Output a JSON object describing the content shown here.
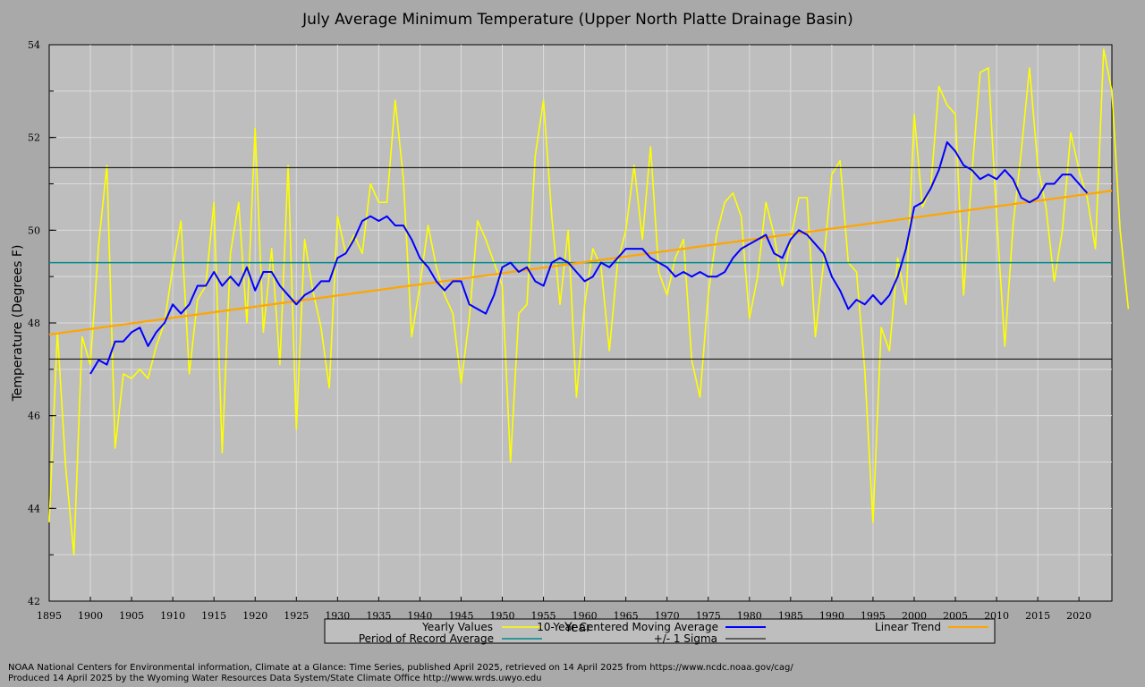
{
  "chart_data": {
    "type": "line",
    "title": "July Average Minimum Temperature (Upper North Platte Drainage Basin)",
    "xlabel": "Year",
    "ylabel": "Temperature (Degrees F)",
    "xlim": [
      1895,
      2024
    ],
    "ylim": [
      42,
      54
    ],
    "x_ticks": [
      1895,
      1900,
      1905,
      1910,
      1915,
      1920,
      1925,
      1930,
      1935,
      1940,
      1945,
      1950,
      1955,
      1960,
      1965,
      1970,
      1975,
      1980,
      1985,
      1990,
      1995,
      2000,
      2005,
      2010,
      2015,
      2020
    ],
    "y_ticks": [
      42,
      44,
      46,
      48,
      50,
      52,
      54
    ],
    "grid": true,
    "legend_placement": "bottom",
    "colors": {
      "plot_bg": "#bebebe",
      "page_bg": "#a9a9a9",
      "yearly": "#ffff00",
      "moving_avg": "#0000ff",
      "trend": "#ffa500",
      "por_avg": "#008b8b",
      "sigma": "#000000"
    },
    "legend": {
      "yearly": "Yearly Values",
      "moving_avg": "10-Year Centered Moving Average",
      "trend": "Linear Trend",
      "por_avg": "Period of Record Average",
      "sigma": "+/- 1 Sigma"
    },
    "years_start": 1895,
    "yearly_values": [
      43.7,
      47.8,
      44.9,
      43.0,
      47.7,
      47.1,
      49.7,
      51.4,
      45.3,
      46.9,
      46.8,
      47.0,
      46.8,
      47.5,
      48.0,
      49.2,
      50.2,
      46.9,
      48.5,
      48.8,
      50.6,
      45.2,
      49.5,
      50.6,
      48.0,
      52.2,
      47.8,
      49.6,
      47.1,
      51.4,
      45.7,
      49.8,
      48.7,
      47.9,
      46.6,
      50.3,
      49.5,
      49.9,
      49.5,
      51.0,
      50.6,
      50.6,
      52.8,
      51.1,
      47.7,
      48.8,
      50.1,
      49.2,
      48.6,
      48.2,
      46.7,
      48.1,
      50.2,
      49.8,
      49.3,
      48.8,
      45.0,
      48.2,
      48.4,
      51.6,
      52.8,
      50.3,
      48.4,
      50.0,
      46.4,
      48.4,
      49.6,
      49.2,
      47.4,
      49.3,
      50.0,
      51.4,
      49.8,
      51.8,
      49.1,
      48.6,
      49.4,
      49.8,
      47.2,
      46.4,
      48.6,
      49.9,
      50.6,
      50.8,
      50.3,
      48.1,
      49.0,
      50.6,
      49.9,
      48.8,
      49.8,
      50.7,
      50.7,
      47.7,
      49.3,
      51.2,
      51.5,
      49.3,
      49.1,
      47.0,
      43.7,
      47.9,
      47.4,
      49.4,
      48.4,
      52.5,
      50.5,
      50.9,
      53.1,
      52.7,
      52.5,
      48.6,
      51.2,
      53.4,
      53.5,
      50.3,
      47.5,
      50.1,
      51.7,
      53.5,
      51.4,
      50.5,
      48.9,
      50.0,
      52.1,
      51.3,
      50.7,
      49.6,
      53.9,
      53.0,
      50.0,
      48.3
    ],
    "moving_avg_start": 1900,
    "moving_avg_values": [
      46.9,
      47.2,
      47.1,
      47.6,
      47.6,
      47.8,
      47.9,
      47.5,
      47.8,
      48.0,
      48.4,
      48.2,
      48.4,
      48.8,
      48.8,
      49.1,
      48.8,
      49.0,
      48.8,
      49.2,
      48.7,
      49.1,
      49.1,
      48.8,
      48.6,
      48.4,
      48.6,
      48.7,
      48.9,
      48.9,
      49.4,
      49.5,
      49.8,
      50.2,
      50.3,
      50.2,
      50.3,
      50.1,
      50.1,
      49.8,
      49.4,
      49.2,
      48.9,
      48.7,
      48.9,
      48.9,
      48.4,
      48.3,
      48.2,
      48.6,
      49.2,
      49.3,
      49.1,
      49.2,
      48.9,
      48.8,
      49.3,
      49.4,
      49.3,
      49.1,
      48.9,
      49.0,
      49.3,
      49.2,
      49.4,
      49.6,
      49.6,
      49.6,
      49.4,
      49.3,
      49.2,
      49.0,
      49.1,
      49.0,
      49.1,
      49.0,
      49.0,
      49.1,
      49.4,
      49.6,
      49.7,
      49.8,
      49.9,
      49.5,
      49.4,
      49.8,
      50.0,
      49.9,
      49.7,
      49.5,
      49.0,
      48.7,
      48.3,
      48.5,
      48.4,
      48.6,
      48.4,
      48.6,
      49.0,
      49.6,
      50.5,
      50.6,
      50.9,
      51.3,
      51.9,
      51.7,
      51.4,
      51.3,
      51.1,
      51.2,
      51.1,
      51.3,
      51.1,
      50.7,
      50.6,
      50.7,
      51.0,
      51.0,
      51.2,
      51.2,
      51.0,
      50.8
    ],
    "trend_start": [
      1895,
      47.75
    ],
    "trend_end": [
      2024,
      50.85
    ],
    "por_average": 49.3,
    "sigma_upper": 51.35,
    "sigma_lower": 47.22
  },
  "footer": {
    "credit_line_1": "NOAA National Centers for Environmental information, Climate at a Glance: Time Series, published April 2025, retrieved on 14 April 2025 from https://www.ncdc.noaa.gov/cag/",
    "credit_line_2": "Produced 14 April 2025 by the Wyoming Water Resources Data System/State Climate Office http://www.wrds.uwyo.edu"
  }
}
